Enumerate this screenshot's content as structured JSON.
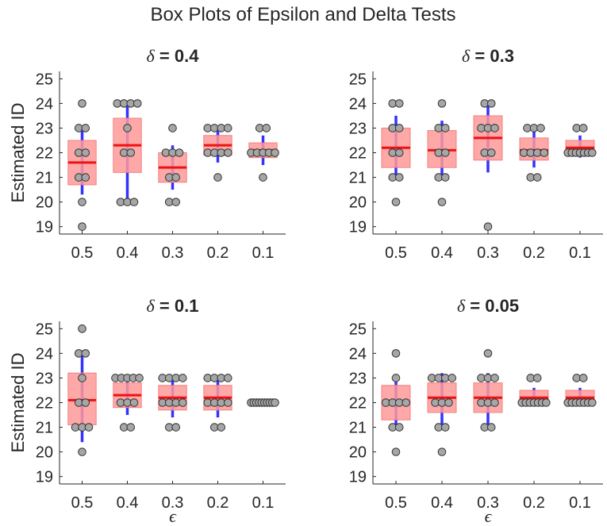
{
  "figure": {
    "title": "Box Plots of Epsilon and Delta Tests"
  },
  "chart_data": [
    {
      "type": "box",
      "title_symbol": "δ",
      "title_value": " = 0.4",
      "ylabel": "Estimated ID",
      "xlabel": "",
      "ylim": [
        18.7,
        25.3
      ],
      "yticks": [
        19,
        20,
        21,
        22,
        23,
        24,
        25
      ],
      "categories": [
        "0.5",
        "0.4",
        "0.3",
        "0.2",
        "0.1"
      ],
      "boxes": [
        {
          "q1": 20.7,
          "median": 21.6,
          "q3": 22.5,
          "whisker_low": 20.3,
          "whisker_high": 23.0,
          "points": [
            24,
            23,
            23,
            22,
            22,
            21,
            21,
            20,
            19
          ]
        },
        {
          "q1": 21.2,
          "median": 22.3,
          "q3": 23.4,
          "whisker_low": 20.1,
          "whisker_high": 24.0,
          "points": [
            24,
            24,
            24,
            24,
            23,
            22,
            22,
            20,
            20,
            20
          ]
        },
        {
          "q1": 20.8,
          "median": 21.4,
          "q3": 22.0,
          "whisker_low": 20.5,
          "whisker_high": 22.3,
          "points": [
            23,
            22,
            22,
            22,
            21,
            21,
            20,
            20
          ]
        },
        {
          "q1": 21.9,
          "median": 22.3,
          "q3": 22.7,
          "whisker_low": 21.6,
          "whisker_high": 23.0,
          "points": [
            23,
            23,
            23,
            23,
            22,
            22,
            22,
            22,
            21
          ]
        },
        {
          "q1": 21.8,
          "median": 22.1,
          "q3": 22.4,
          "whisker_low": 21.5,
          "whisker_high": 22.7,
          "points": [
            23,
            23,
            22,
            22,
            22,
            22,
            22,
            21
          ]
        }
      ]
    },
    {
      "type": "box",
      "title_symbol": "δ",
      "title_value": " = 0.3",
      "ylabel": "",
      "xlabel": "",
      "ylim": [
        18.7,
        25.3
      ],
      "yticks": [
        19,
        20,
        21,
        22,
        23,
        24,
        25
      ],
      "categories": [
        "0.5",
        "0.4",
        "0.3",
        "0.2",
        "0.1"
      ],
      "boxes": [
        {
          "q1": 21.4,
          "median": 22.2,
          "q3": 23.0,
          "whisker_low": 21.0,
          "whisker_high": 23.5,
          "points": [
            24,
            24,
            23,
            23,
            22,
            22,
            21,
            21,
            20
          ]
        },
        {
          "q1": 21.4,
          "median": 22.1,
          "q3": 22.9,
          "whisker_low": 21.0,
          "whisker_high": 23.3,
          "points": [
            24,
            23,
            23,
            22,
            22,
            21,
            21,
            20
          ]
        },
        {
          "q1": 21.7,
          "median": 22.6,
          "q3": 23.5,
          "whisker_low": 21.2,
          "whisker_high": 24.0,
          "points": [
            24,
            24,
            23,
            23,
            23,
            22,
            22,
            19
          ]
        },
        {
          "q1": 21.7,
          "median": 22.1,
          "q3": 22.6,
          "whisker_low": 21.4,
          "whisker_high": 22.9,
          "points": [
            23,
            23,
            23,
            22,
            22,
            22,
            22,
            21,
            21
          ]
        },
        {
          "q1": 22.0,
          "median": 22.2,
          "q3": 22.5,
          "whisker_low": 21.8,
          "whisker_high": 22.7,
          "points": [
            23,
            23,
            22,
            22,
            22,
            22,
            22,
            22,
            22
          ]
        }
      ]
    },
    {
      "type": "box",
      "title_symbol": "δ",
      "title_value": " = 0.1",
      "ylabel": "Estimated ID",
      "xlabel": "ϵ",
      "ylim": [
        18.7,
        25.3
      ],
      "yticks": [
        19,
        20,
        21,
        22,
        23,
        24,
        25
      ],
      "categories": [
        "0.5",
        "0.4",
        "0.3",
        "0.2",
        "0.1"
      ],
      "boxes": [
        {
          "q1": 21.1,
          "median": 22.1,
          "q3": 23.2,
          "whisker_low": 20.4,
          "whisker_high": 24.0,
          "points": [
            25,
            24,
            24,
            23,
            22,
            22,
            21,
            21,
            21,
            20
          ]
        },
        {
          "q1": 21.8,
          "median": 22.3,
          "q3": 22.8,
          "whisker_low": 21.5,
          "whisker_high": 23.0,
          "points": [
            23,
            23,
            23,
            23,
            23,
            22,
            22,
            22,
            21,
            21
          ]
        },
        {
          "q1": 21.7,
          "median": 22.2,
          "q3": 22.7,
          "whisker_low": 21.4,
          "whisker_high": 23.0,
          "points": [
            23,
            23,
            23,
            23,
            22,
            22,
            22,
            22,
            21,
            21
          ]
        },
        {
          "q1": 21.7,
          "median": 22.2,
          "q3": 22.7,
          "whisker_low": 21.4,
          "whisker_high": 23.0,
          "points": [
            23,
            23,
            23,
            23,
            22,
            22,
            22,
            22,
            21,
            21
          ]
        },
        {
          "q1": 21.95,
          "median": 22.0,
          "q3": 22.05,
          "whisker_low": 21.9,
          "whisker_high": 22.1,
          "points": [
            22,
            22,
            22,
            22,
            22,
            22,
            22,
            22,
            22,
            22
          ]
        }
      ]
    },
    {
      "type": "box",
      "title_symbol": "δ",
      "title_value": " = 0.05",
      "ylabel": "",
      "xlabel": "ϵ",
      "ylim": [
        18.7,
        25.3
      ],
      "yticks": [
        19,
        20,
        21,
        22,
        23,
        24,
        25
      ],
      "categories": [
        "0.5",
        "0.4",
        "0.3",
        "0.2",
        "0.1"
      ],
      "boxes": [
        {
          "q1": 21.3,
          "median": 22.0,
          "q3": 22.7,
          "whisker_low": 21.0,
          "whisker_high": 23.0,
          "points": [
            24,
            23,
            22,
            22,
            22,
            22,
            21,
            21,
            20
          ]
        },
        {
          "q1": 21.6,
          "median": 22.2,
          "q3": 22.8,
          "whisker_low": 21.0,
          "whisker_high": 23.2,
          "points": [
            23,
            23,
            23,
            23,
            22,
            22,
            22,
            21,
            21,
            20
          ]
        },
        {
          "q1": 21.6,
          "median": 22.2,
          "q3": 22.8,
          "whisker_low": 21.0,
          "whisker_high": 23.2,
          "points": [
            24,
            23,
            23,
            23,
            22,
            22,
            22,
            21,
            21
          ]
        },
        {
          "q1": 22.0,
          "median": 22.2,
          "q3": 22.5,
          "whisker_low": 21.9,
          "whisker_high": 22.6,
          "points": [
            23,
            23,
            22,
            22,
            22,
            22,
            22,
            22,
            22
          ]
        },
        {
          "q1": 22.0,
          "median": 22.2,
          "q3": 22.5,
          "whisker_low": 21.9,
          "whisker_high": 22.6,
          "points": [
            23,
            23,
            22,
            22,
            22,
            22,
            22,
            22,
            22
          ]
        }
      ]
    }
  ]
}
